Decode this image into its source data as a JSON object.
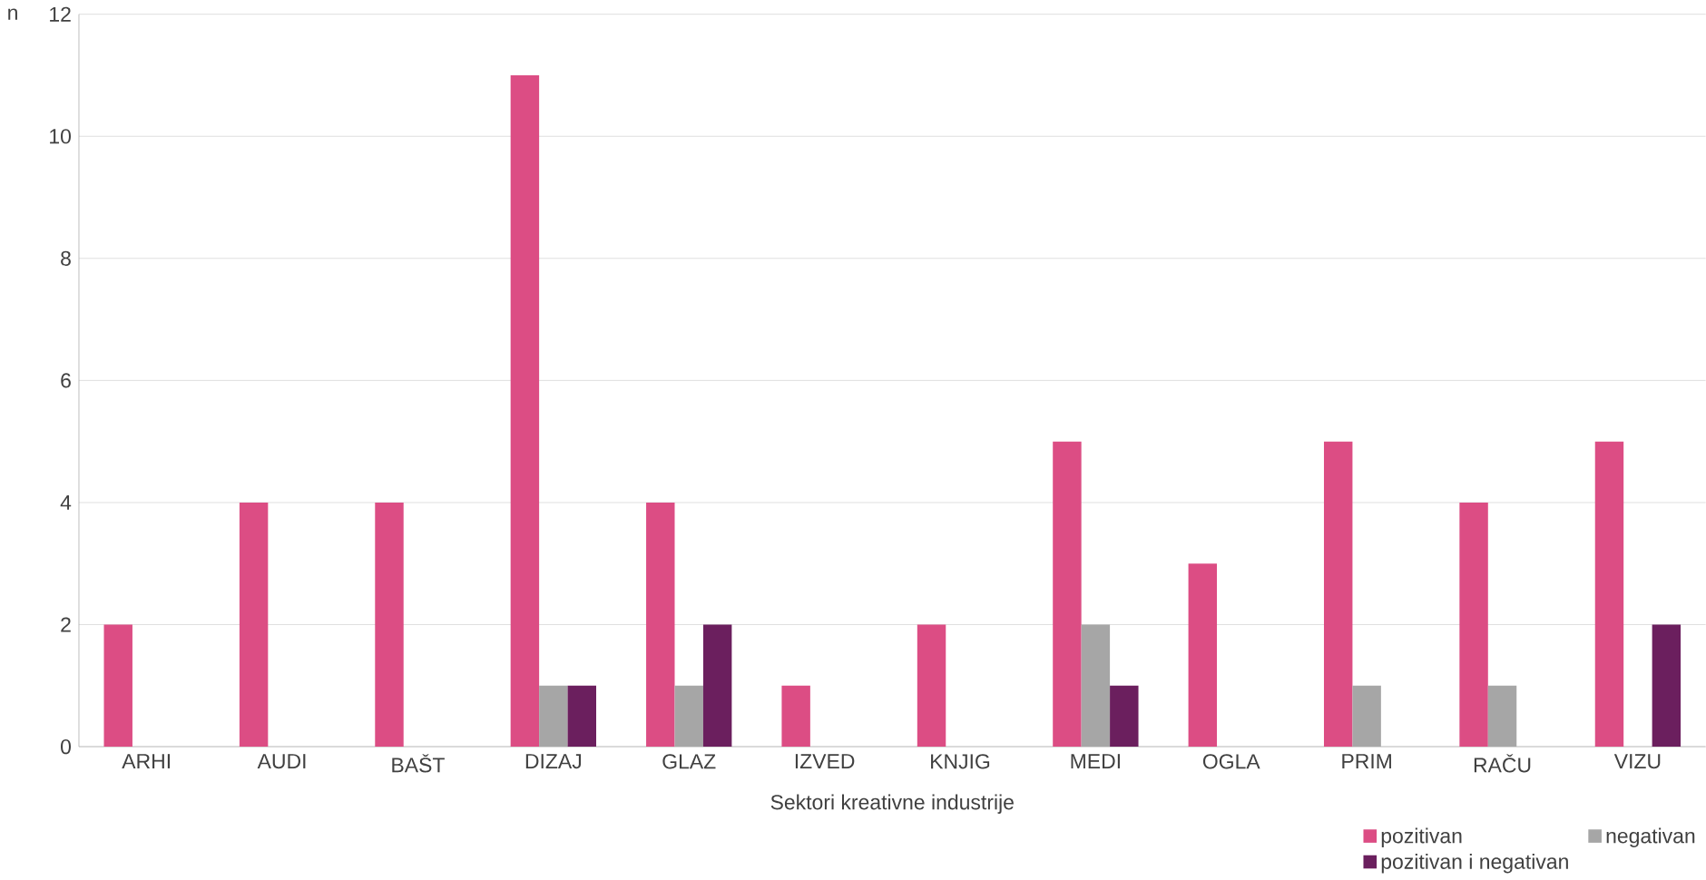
{
  "chart_data": {
    "type": "bar",
    "xlabel": "Sektori kreativne industrije",
    "ylabel": "n",
    "categories": [
      "ARHI",
      "AUDI",
      "BAŠT",
      "DIZAJ",
      "GLAZ",
      "IZVED",
      "KNJIG",
      "MEDI",
      "OGLA",
      "PRIM",
      "RAČU",
      "VIZU"
    ],
    "series": [
      {
        "name": "pozitivan",
        "color": "#dc4d84",
        "values": [
          2,
          4,
          4,
          11,
          4,
          1,
          2,
          5,
          3,
          5,
          4,
          5
        ]
      },
      {
        "name": "negativan",
        "color": "#a6a6a6",
        "values": [
          0,
          0,
          0,
          1,
          1,
          0,
          0,
          2,
          0,
          1,
          1,
          0
        ]
      },
      {
        "name": "pozitivan i negativan",
        "color": "#6b1f5e",
        "values": [
          0,
          0,
          0,
          1,
          2,
          0,
          0,
          1,
          0,
          0,
          0,
          2
        ]
      }
    ],
    "ylim": [
      0,
      12
    ],
    "yticks": [
      0,
      2,
      4,
      6,
      8,
      10,
      12
    ],
    "grid": "y",
    "legend": "bottom right"
  }
}
